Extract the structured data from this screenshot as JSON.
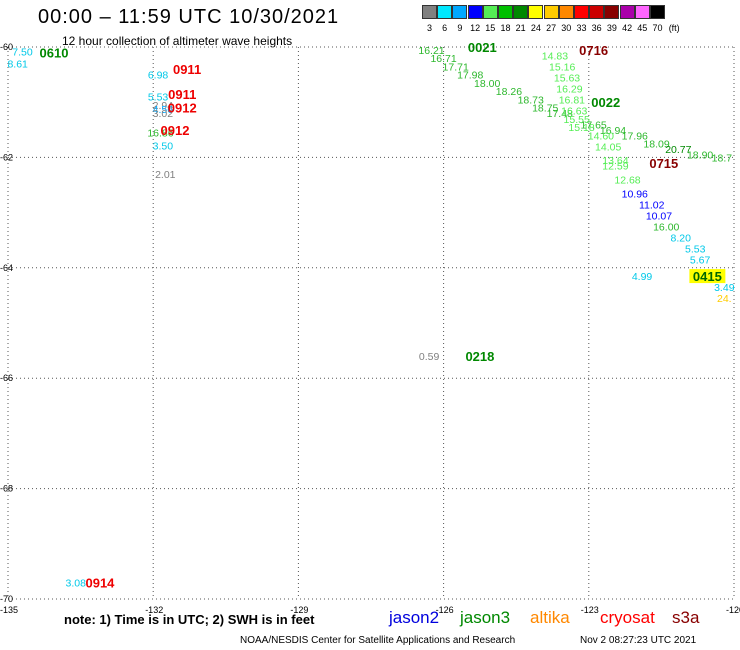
{
  "header": {
    "title": "00:00 – 11:59 UTC 10/30/2021",
    "subtitle": "12 hour collection of altimeter wave heights"
  },
  "legend": {
    "unit": "(ft)",
    "bins": [
      {
        "label": "3",
        "color": "#808080"
      },
      {
        "label": "6",
        "color": "#00e8ff"
      },
      {
        "label": "9",
        "color": "#00a8ff"
      },
      {
        "label": "12",
        "color": "#0000ff"
      },
      {
        "label": "15",
        "color": "#55ee55"
      },
      {
        "label": "18",
        "color": "#00c000"
      },
      {
        "label": "21",
        "color": "#008800"
      },
      {
        "label": "24",
        "color": "#ffff00"
      },
      {
        "label": "27",
        "color": "#ffcc00"
      },
      {
        "label": "30",
        "color": "#ff8800"
      },
      {
        "label": "33",
        "color": "#ff0000"
      },
      {
        "label": "36",
        "color": "#cc0000"
      },
      {
        "label": "39",
        "color": "#880000"
      },
      {
        "label": "42",
        "color": "#aa00aa"
      },
      {
        "label": "45",
        "color": "#ff66ff"
      },
      {
        "label": "70",
        "color": "#000000"
      }
    ]
  },
  "map": {
    "lon_range": [
      -135,
      -120
    ],
    "lat_range": [
      -70,
      -60
    ],
    "lon_ticks": [
      "-135",
      "-132",
      "-129",
      "-126",
      "-123",
      "-120"
    ],
    "lat_ticks": [
      "-60",
      "-62",
      "-64",
      "-66",
      "-68",
      "-70"
    ],
    "lat_tick_values": [
      -60,
      -62,
      -64,
      -66,
      -68,
      -70
    ],
    "lon_tick_values": [
      -135,
      -132,
      -129,
      -126,
      -123,
      -120
    ],
    "grid": "dotted",
    "observations": [
      {
        "lon": -134.7,
        "lat": -60.08,
        "swh": "7.50",
        "color": "#00c8e8"
      },
      {
        "lon": -134.8,
        "lat": -60.3,
        "swh": "8.61",
        "color": "#00c8e8"
      },
      {
        "lon": -131.9,
        "lat": -60.5,
        "swh": "6.98",
        "color": "#00c8e8"
      },
      {
        "lon": -131.9,
        "lat": -60.9,
        "swh": "5.53",
        "color": "#00c8e8"
      },
      {
        "lon": -131.8,
        "lat": -61.05,
        "swh": "2.94",
        "color": "#808080"
      },
      {
        "lon": -131.8,
        "lat": -61.12,
        "swh": "4.56",
        "color": "#00a8ff"
      },
      {
        "lon": -131.8,
        "lat": -61.2,
        "swh": "3.02",
        "color": "#808080"
      },
      {
        "lon": -131.85,
        "lat": -61.55,
        "swh": "16.86",
        "color": "#2db82d"
      },
      {
        "lon": -131.8,
        "lat": -61.78,
        "swh": "3.50",
        "color": "#00c8e8"
      },
      {
        "lon": -131.75,
        "lat": -62.3,
        "swh": "2.01",
        "color": "#808080"
      },
      {
        "lon": -133.6,
        "lat": -69.7,
        "swh": "3.08",
        "color": "#00c8e8"
      },
      {
        "lon": -126.3,
        "lat": -65.6,
        "swh": "0.59",
        "color": "#808080"
      },
      {
        "lon": -126.25,
        "lat": -60.05,
        "swh": "16.21",
        "color": "#2db82d"
      },
      {
        "lon": -126.0,
        "lat": -60.2,
        "swh": "16.71",
        "color": "#2db82d"
      },
      {
        "lon": -125.75,
        "lat": -60.35,
        "swh": "17.71",
        "color": "#2db82d"
      },
      {
        "lon": -125.45,
        "lat": -60.5,
        "swh": "17.98",
        "color": "#2db82d"
      },
      {
        "lon": -125.1,
        "lat": -60.65,
        "swh": "18.00",
        "color": "#2db82d"
      },
      {
        "lon": -124.65,
        "lat": -60.8,
        "swh": "18.26",
        "color": "#2db82d"
      },
      {
        "lon": -124.2,
        "lat": -60.95,
        "swh": "18.73",
        "color": "#2db82d"
      },
      {
        "lon": -123.9,
        "lat": -61.1,
        "swh": "18.75",
        "color": "#2db82d"
      },
      {
        "lon": -123.6,
        "lat": -61.2,
        "swh": "17.48",
        "color": "#2db82d"
      },
      {
        "lon": -123.7,
        "lat": -60.15,
        "swh": "14.83",
        "color": "#55ee55"
      },
      {
        "lon": -123.55,
        "lat": -60.35,
        "swh": "15.16",
        "color": "#55ee55"
      },
      {
        "lon": -123.45,
        "lat": -60.55,
        "swh": "15.63",
        "color": "#55ee55"
      },
      {
        "lon": -123.4,
        "lat": -60.75,
        "swh": "16.29",
        "color": "#55ee55"
      },
      {
        "lon": -123.35,
        "lat": -60.95,
        "swh": "16.81",
        "color": "#55ee55"
      },
      {
        "lon": -123.3,
        "lat": -61.15,
        "swh": "16.63",
        "color": "#55ee55"
      },
      {
        "lon": -123.25,
        "lat": -61.3,
        "swh": "15.55",
        "color": "#55ee55"
      },
      {
        "lon": -123.15,
        "lat": -61.45,
        "swh": "15.18",
        "color": "#55ee55"
      },
      {
        "lon": -122.9,
        "lat": -61.4,
        "swh": "17.65",
        "color": "#2db82d"
      },
      {
        "lon": -122.5,
        "lat": -61.5,
        "swh": "16.94",
        "color": "#2db82d"
      },
      {
        "lon": -122.05,
        "lat": -61.6,
        "swh": "17.96",
        "color": "#2db82d"
      },
      {
        "lon": -121.6,
        "lat": -61.75,
        "swh": "18.09",
        "color": "#2db82d"
      },
      {
        "lon": -121.15,
        "lat": -61.85,
        "swh": "20.77",
        "color": "#008800"
      },
      {
        "lon": -120.7,
        "lat": -61.95,
        "swh": "18.90",
        "color": "#2db82d"
      },
      {
        "lon": -120.25,
        "lat": -62.0,
        "swh": "18.7",
        "color": "#2db82d"
      },
      {
        "lon": -122.75,
        "lat": -61.6,
        "swh": "14.60",
        "color": "#55ee55"
      },
      {
        "lon": -122.6,
        "lat": -61.8,
        "swh": "14.05",
        "color": "#55ee55"
      },
      {
        "lon": -122.45,
        "lat": -62.05,
        "swh": "13.64",
        "color": "#55ee55"
      },
      {
        "lon": -122.45,
        "lat": -62.15,
        "swh": "12.59",
        "color": "#55ee55"
      },
      {
        "lon": -122.2,
        "lat": -62.4,
        "swh": "12.68",
        "color": "#55ee55"
      },
      {
        "lon": -122.05,
        "lat": -62.65,
        "swh": "10.96",
        "color": "#0000ff"
      },
      {
        "lon": -121.7,
        "lat": -62.85,
        "swh": "11.02",
        "color": "#0000ff"
      },
      {
        "lon": -121.55,
        "lat": -63.05,
        "swh": "10.07",
        "color": "#0000ff"
      },
      {
        "lon": -121.4,
        "lat": -63.25,
        "swh": "16.00",
        "color": "#2db82d"
      },
      {
        "lon": -121.1,
        "lat": -63.45,
        "swh": "8.20",
        "color": "#00c8e8"
      },
      {
        "lon": -120.8,
        "lat": -63.65,
        "swh": "5.53",
        "color": "#00c8e8"
      },
      {
        "lon": -120.7,
        "lat": -63.85,
        "swh": "5.67",
        "color": "#00c8e8"
      },
      {
        "lon": -121.9,
        "lat": -64.15,
        "swh": "4.99",
        "color": "#00c8e8"
      },
      {
        "lon": -120.2,
        "lat": -64.35,
        "swh": "3.49",
        "color": "#00c8e8"
      },
      {
        "lon": -120.2,
        "lat": -64.55,
        "swh": "24.",
        "color": "#ffcc00"
      }
    ],
    "pass_times": [
      {
        "lon": -134.05,
        "lat": -60.1,
        "time": "0610",
        "color": "#008800"
      },
      {
        "lon": -131.3,
        "lat": -60.4,
        "time": "0911",
        "color": "#ee0000"
      },
      {
        "lon": -131.4,
        "lat": -60.85,
        "time": "0911",
        "color": "#ee0000"
      },
      {
        "lon": -131.4,
        "lat": -61.1,
        "time": "0912",
        "color": "#ee0000"
      },
      {
        "lon": -131.55,
        "lat": -61.5,
        "time": "0912",
        "color": "#ee0000"
      },
      {
        "lon": -133.1,
        "lat": -69.7,
        "time": "0914",
        "color": "#ee0000"
      },
      {
        "lon": -125.25,
        "lat": -65.6,
        "time": "0218",
        "color": "#008800"
      },
      {
        "lon": -125.2,
        "lat": -60.0,
        "time": "0021",
        "color": "#008800"
      },
      {
        "lon": -122.9,
        "lat": -60.05,
        "time": "0716",
        "color": "#880000"
      },
      {
        "lon": -122.65,
        "lat": -61.0,
        "time": "0022",
        "color": "#008800"
      },
      {
        "lon": -121.45,
        "lat": -62.1,
        "time": "0715",
        "color": "#880000"
      },
      {
        "lon": -120.55,
        "lat": -64.15,
        "time": "0415",
        "color": "#006600",
        "highlight": "#ffff00"
      }
    ]
  },
  "footer": {
    "note": "note: 1) Time is in UTC; 2) SWH is in feet",
    "satellites": [
      {
        "name": "jason2",
        "color": "#0000dd"
      },
      {
        "name": "jason3",
        "color": "#008800"
      },
      {
        "name": "altika",
        "color": "#ff8800"
      },
      {
        "name": "cryosat",
        "color": "#ff0000"
      },
      {
        "name": "s3a",
        "color": "#880000"
      }
    ],
    "credit": "NOAA/NESDIS Center for Satellite Applications and Research",
    "generated": "Nov  2 08:27:23 UTC 2021"
  }
}
